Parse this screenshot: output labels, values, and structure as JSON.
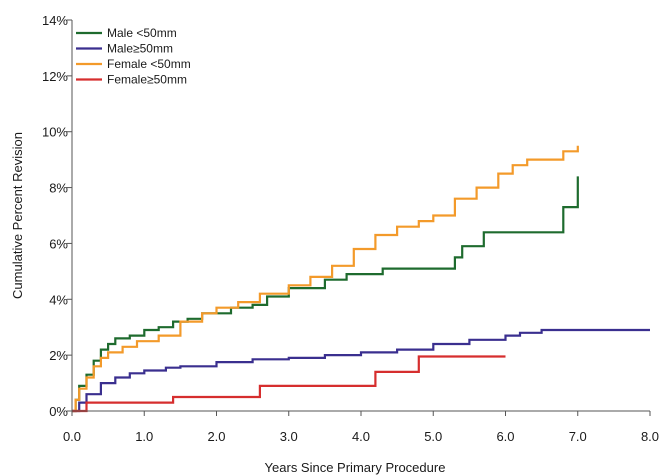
{
  "chart_data": {
    "type": "line",
    "subtype": "step",
    "xlabel": "Years Since Primary Procedure",
    "ylabel": "Cumulative Percent Revision",
    "xlim": [
      0,
      8
    ],
    "ylim": [
      0,
      14
    ],
    "x_ticks": [
      "0.0",
      "1.0",
      "2.0",
      "3.0",
      "4.0",
      "5.0",
      "6.0",
      "7.0",
      "8.0"
    ],
    "y_ticks": [
      "0%",
      "2%",
      "4%",
      "6%",
      "8%",
      "10%",
      "12%",
      "14%"
    ],
    "grid": false,
    "legend_position": "top-left",
    "series": [
      {
        "name": "Male <50mm",
        "color": "#1e6b2e",
        "points": [
          [
            0,
            0
          ],
          [
            0.05,
            0.4
          ],
          [
            0.1,
            0.9
          ],
          [
            0.2,
            1.3
          ],
          [
            0.3,
            1.8
          ],
          [
            0.4,
            2.2
          ],
          [
            0.5,
            2.4
          ],
          [
            0.6,
            2.6
          ],
          [
            0.8,
            2.7
          ],
          [
            1.0,
            2.9
          ],
          [
            1.2,
            3.0
          ],
          [
            1.4,
            3.2
          ],
          [
            1.6,
            3.3
          ],
          [
            1.8,
            3.5
          ],
          [
            2.0,
            3.5
          ],
          [
            2.2,
            3.7
          ],
          [
            2.5,
            3.8
          ],
          [
            2.7,
            4.1
          ],
          [
            3.0,
            4.4
          ],
          [
            3.5,
            4.7
          ],
          [
            3.8,
            4.9
          ],
          [
            4.0,
            4.9
          ],
          [
            4.3,
            5.1
          ],
          [
            5.0,
            5.1
          ],
          [
            5.3,
            5.5
          ],
          [
            5.4,
            5.9
          ],
          [
            5.7,
            6.4
          ],
          [
            6.0,
            6.4
          ],
          [
            6.8,
            7.3
          ],
          [
            7.0,
            8.4
          ]
        ]
      },
      {
        "name": "Male≥50mm",
        "color": "#3a2f8f",
        "points": [
          [
            0,
            0
          ],
          [
            0.1,
            0.3
          ],
          [
            0.2,
            0.6
          ],
          [
            0.4,
            1.0
          ],
          [
            0.6,
            1.2
          ],
          [
            0.8,
            1.35
          ],
          [
            1.0,
            1.45
          ],
          [
            1.3,
            1.55
          ],
          [
            1.5,
            1.6
          ],
          [
            2.0,
            1.75
          ],
          [
            2.5,
            1.85
          ],
          [
            3.0,
            1.9
          ],
          [
            3.5,
            2.0
          ],
          [
            4.0,
            2.1
          ],
          [
            4.5,
            2.2
          ],
          [
            5.0,
            2.4
          ],
          [
            5.5,
            2.55
          ],
          [
            6.0,
            2.7
          ],
          [
            6.2,
            2.8
          ],
          [
            6.5,
            2.9
          ],
          [
            7.0,
            2.9
          ],
          [
            8.0,
            2.9
          ]
        ]
      },
      {
        "name": "Female <50mm",
        "color": "#f39a2a",
        "points": [
          [
            0,
            0
          ],
          [
            0.05,
            0.4
          ],
          [
            0.1,
            0.8
          ],
          [
            0.2,
            1.2
          ],
          [
            0.3,
            1.6
          ],
          [
            0.4,
            1.9
          ],
          [
            0.5,
            2.1
          ],
          [
            0.7,
            2.3
          ],
          [
            0.9,
            2.5
          ],
          [
            1.2,
            2.7
          ],
          [
            1.5,
            3.2
          ],
          [
            1.8,
            3.5
          ],
          [
            2.0,
            3.7
          ],
          [
            2.3,
            3.9
          ],
          [
            2.6,
            4.2
          ],
          [
            3.0,
            4.5
          ],
          [
            3.3,
            4.8
          ],
          [
            3.6,
            5.2
          ],
          [
            3.9,
            5.8
          ],
          [
            4.2,
            6.3
          ],
          [
            4.5,
            6.6
          ],
          [
            4.8,
            6.8
          ],
          [
            5.0,
            7.0
          ],
          [
            5.3,
            7.6
          ],
          [
            5.6,
            8.0
          ],
          [
            5.9,
            8.5
          ],
          [
            6.1,
            8.8
          ],
          [
            6.3,
            9.0
          ],
          [
            6.8,
            9.3
          ],
          [
            7.0,
            9.5
          ]
        ]
      },
      {
        "name": "Female≥50mm",
        "color": "#d62e2e",
        "points": [
          [
            0,
            0
          ],
          [
            0.2,
            0.3
          ],
          [
            1.4,
            0.5
          ],
          [
            2.6,
            0.9
          ],
          [
            4.2,
            1.4
          ],
          [
            4.8,
            1.95
          ],
          [
            6.0,
            1.95
          ]
        ]
      }
    ]
  }
}
